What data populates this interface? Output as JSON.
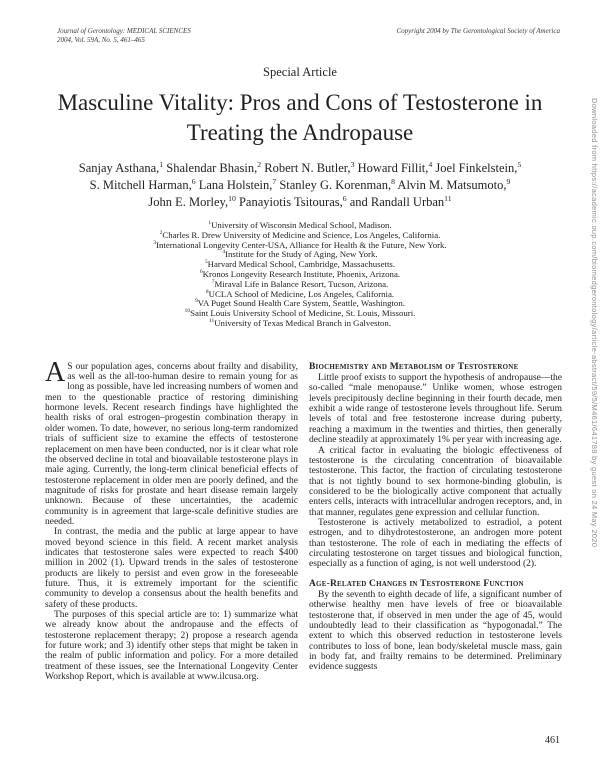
{
  "journal": {
    "name": "Journal of Gerontology: MEDICAL SCIENCES",
    "issue": "2004, Vol. 59A, No. 5, 461–465",
    "copyright": "Copyright 2004 by The Gerontological Society of America"
  },
  "article": {
    "category": "Special Article",
    "title": "Masculine Vitality: Pros and Cons of Testosterone in Treating the Andropause"
  },
  "authors": {
    "lines": [
      [
        {
          "text": "Sanjay Asthana,"
        },
        {
          "sup": "1"
        },
        {
          "text": " Shalendar Bhasin,"
        },
        {
          "sup": "2"
        },
        {
          "text": " Robert N. Butler,"
        },
        {
          "sup": "3"
        },
        {
          "text": " Howard Fillit,"
        },
        {
          "sup": "4"
        },
        {
          "text": " Joel Finkelstein,"
        },
        {
          "sup": "5"
        }
      ],
      [
        {
          "text": "S. Mitchell Harman,"
        },
        {
          "sup": "6"
        },
        {
          "text": " Lana Holstein,"
        },
        {
          "sup": "7"
        },
        {
          "text": " Stanley G. Korenman,"
        },
        {
          "sup": "8"
        },
        {
          "text": " Alvin M. Matsumoto,"
        },
        {
          "sup": "9"
        }
      ],
      [
        {
          "text": "John E. Morley,"
        },
        {
          "sup": "10"
        },
        {
          "text": " Panayiotis Tsitouras,"
        },
        {
          "sup": "6"
        },
        {
          "text": " and Randall Urban"
        },
        {
          "sup": "11"
        }
      ]
    ]
  },
  "affiliations": [
    {
      "sup": "1",
      "text": "University of Wisconsin Medical School, Madison."
    },
    {
      "sup": "2",
      "text": "Charles R. Drew University of Medicine and Science, Los Angeles, California."
    },
    {
      "sup": "3",
      "text": "International Longevity Center-USA, Alliance for Health & the Future, New York."
    },
    {
      "sup": "4",
      "text": "Institute for the Study of Aging, New York."
    },
    {
      "sup": "5",
      "text": "Harvard Medical School, Cambridge, Massachusetts."
    },
    {
      "sup": "6",
      "text": "Kronos Longevity Research Institute, Phoenix, Arizona."
    },
    {
      "sup": "7",
      "text": "Miraval Life in Balance Resort, Tucson, Arizona."
    },
    {
      "sup": "8",
      "text": "UCLA School of Medicine, Los Angeles, California."
    },
    {
      "sup": "9",
      "text": "VA Puget Sound Health Care System, Seattle, Washington."
    },
    {
      "sup": "10",
      "text": "Saint Louis University School of Medicine, St. Louis, Missouri."
    },
    {
      "sup": "11",
      "text": "University of Texas Medical Branch in Galveston."
    }
  ],
  "body": {
    "left_column": [
      {
        "type": "dropcap",
        "cap": "A",
        "text": "S our population ages, concerns about frailty and disability, as well as the all-too-human desire to remain young for as long as possible, have led increasing numbers of women and men to the questionable practice of restoring diminishing hormone levels. Recent research findings have highlighted the health risks of oral estrogen–progestin combination therapy in older women. To date, however, no serious long-term randomized trials of sufficient size to examine the effects of testosterone replacement on men have been conducted, nor is it clear what role the observed decline in total and bioavailable testosterone plays in male aging. Currently, the long-term clinical beneficial effects of testosterone replacement in older men are poorly defined, and the magnitude of risks for prostate and heart disease remain largely unknown. Because of these uncertainties, the academic community is in agreement that large-scale definitive studies are needed."
      },
      {
        "type": "para",
        "text": "In contrast, the media and the public at large appear to have moved beyond science in this field. A recent market analysis indicates that testosterone sales were expected to reach $400 million in 2002 (1). Upward trends in the sales of testosterone products are likely to persist and even grow in the foreseeable future. Thus, it is extremely important for the scientific community to develop a consensus about the health benefits and safety of these products."
      },
      {
        "type": "para",
        "text": "The purposes of this special article are to: 1) summarize what we already know about the andropause and the effects of testosterone replacement therapy; 2) propose a research agenda for future work; and 3) identify other steps that might be taken in the realm of public information and policy. For a more detailed treatment of these issues, see the International Longevity Center Workshop Report, which is available at www.ilcusa.org."
      }
    ],
    "right_column": [
      {
        "type": "heading",
        "text": "Biochemistry and Metabolism of Testosterone"
      },
      {
        "type": "para",
        "text": "Little proof exists to support the hypothesis of andropause—the so-called “male menopause.” Unlike women, whose estrogen levels precipitously decline beginning in their fourth decade, men exhibit a wide range of testosterone levels throughout life. Serum levels of total and free testosterone increase during puberty, reaching a maximum in the twenties and thirties, then generally decline steadily at approximately 1% per year with increasing age."
      },
      {
        "type": "para",
        "text": "A critical factor in evaluating the biologic effectiveness of testosterone is the circulating concentration of bioavailable testosterone. This factor, the fraction of circulating testosterone that is not tightly bound to sex hormone-binding globulin, is considered to be the biologically active component that actually enters cells, interacts with intracellular androgen receptors, and, in that manner, regulates gene expression and cellular function."
      },
      {
        "type": "para",
        "text": "Testosterone is actively metabolized to estradiol, a potent estrogen, and to dihydrotestosterone, an androgen more potent than testosterone. The role of each in mediating the effects of circulating testosterone on target tissues and biological function, especially as a function of aging, is not well understood (2)."
      },
      {
        "type": "heading_spaced",
        "text": "Age-Related Changes in Testosterone Function"
      },
      {
        "type": "para",
        "text": "By the seventh to eighth decade of life, a significant number of otherwise healthy men have levels of free or bioavailable testosterone that, if observed in men under the age of 45, would undoubtedly lead to their classification as “hypogonadal.” The extent to which this observed reduction in testosterone levels contributes to loss of bone, lean body/skeletal muscle mass, gain in body fat, and frailty remains to be determined. Preliminary evidence suggests"
      }
    ]
  },
  "sidebar": {
    "text": "Downloaded from https://academic.oup.com/biomedgerontology/article-abstract/59/5/M461/641788 by guest on 24 May 2020"
  },
  "page_number": "461"
}
